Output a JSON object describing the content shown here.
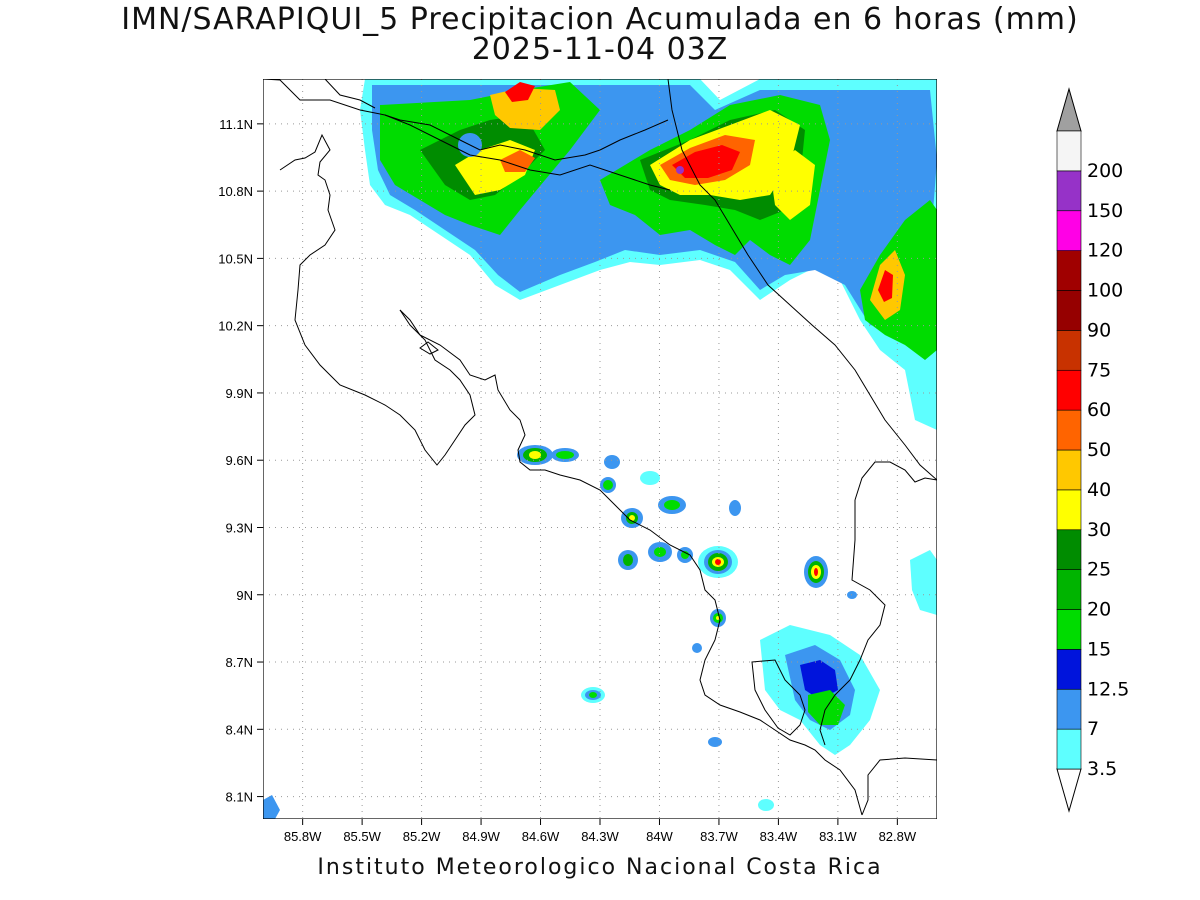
{
  "title_line1": "IMN/SARAPIQUI_5 Precipitacion Acumulada en 6 horas (mm)",
  "title_line2": "2025-11-04 03Z",
  "footer": "Instituto Meteorologico Nacional Costa Rica",
  "map": {
    "lon_range": [
      -86.0,
      -82.6
    ],
    "lat_range": [
      8.0,
      11.3
    ],
    "lon_ticks": [
      {
        "v": -85.8,
        "label": "85.8W"
      },
      {
        "v": -85.5,
        "label": "85.5W"
      },
      {
        "v": -85.2,
        "label": "85.2W"
      },
      {
        "v": -84.9,
        "label": "84.9W"
      },
      {
        "v": -84.6,
        "label": "84.6W"
      },
      {
        "v": -84.3,
        "label": "84.3W"
      },
      {
        "v": -84.0,
        "label": "84W"
      },
      {
        "v": -83.7,
        "label": "83.7W"
      },
      {
        "v": -83.4,
        "label": "83.4W"
      },
      {
        "v": -83.1,
        "label": "83.1W"
      },
      {
        "v": -82.8,
        "label": "82.8W"
      }
    ],
    "lat_ticks": [
      {
        "v": 11.1,
        "label": "11.1N"
      },
      {
        "v": 10.8,
        "label": "10.8N"
      },
      {
        "v": 10.5,
        "label": "10.5N"
      },
      {
        "v": 10.2,
        "label": "10.2N"
      },
      {
        "v": 9.9,
        "label": "9.9N"
      },
      {
        "v": 9.6,
        "label": "9.6N"
      },
      {
        "v": 9.3,
        "label": "9.3N"
      },
      {
        "v": 9.0,
        "label": "9N"
      },
      {
        "v": 8.7,
        "label": "8.7N"
      },
      {
        "v": 8.4,
        "label": "8.4N"
      },
      {
        "v": 8.1,
        "label": "8.1N"
      }
    ],
    "grid": true
  },
  "legend": {
    "levels": [
      "3.5",
      "7",
      "12.5",
      "15",
      "20",
      "25",
      "30",
      "40",
      "50",
      "60",
      "75",
      "90",
      "100",
      "120",
      "150",
      "200"
    ],
    "colors": [
      "#5effff",
      "#3c96f0",
      "#0014dc",
      "#00dc00",
      "#00b400",
      "#008c00",
      "#ffff00",
      "#ffc800",
      "#ff6400",
      "#ff0000",
      "#c83200",
      "#960000",
      "#a00000",
      "#ff00e6",
      "#9632c8",
      "#f5f5f5"
    ],
    "top_cap_color": "#a0a0a0",
    "bottom_cap_color": "#ffffff"
  },
  "colors": {
    "coast": "#000000",
    "grid": "#999999"
  }
}
